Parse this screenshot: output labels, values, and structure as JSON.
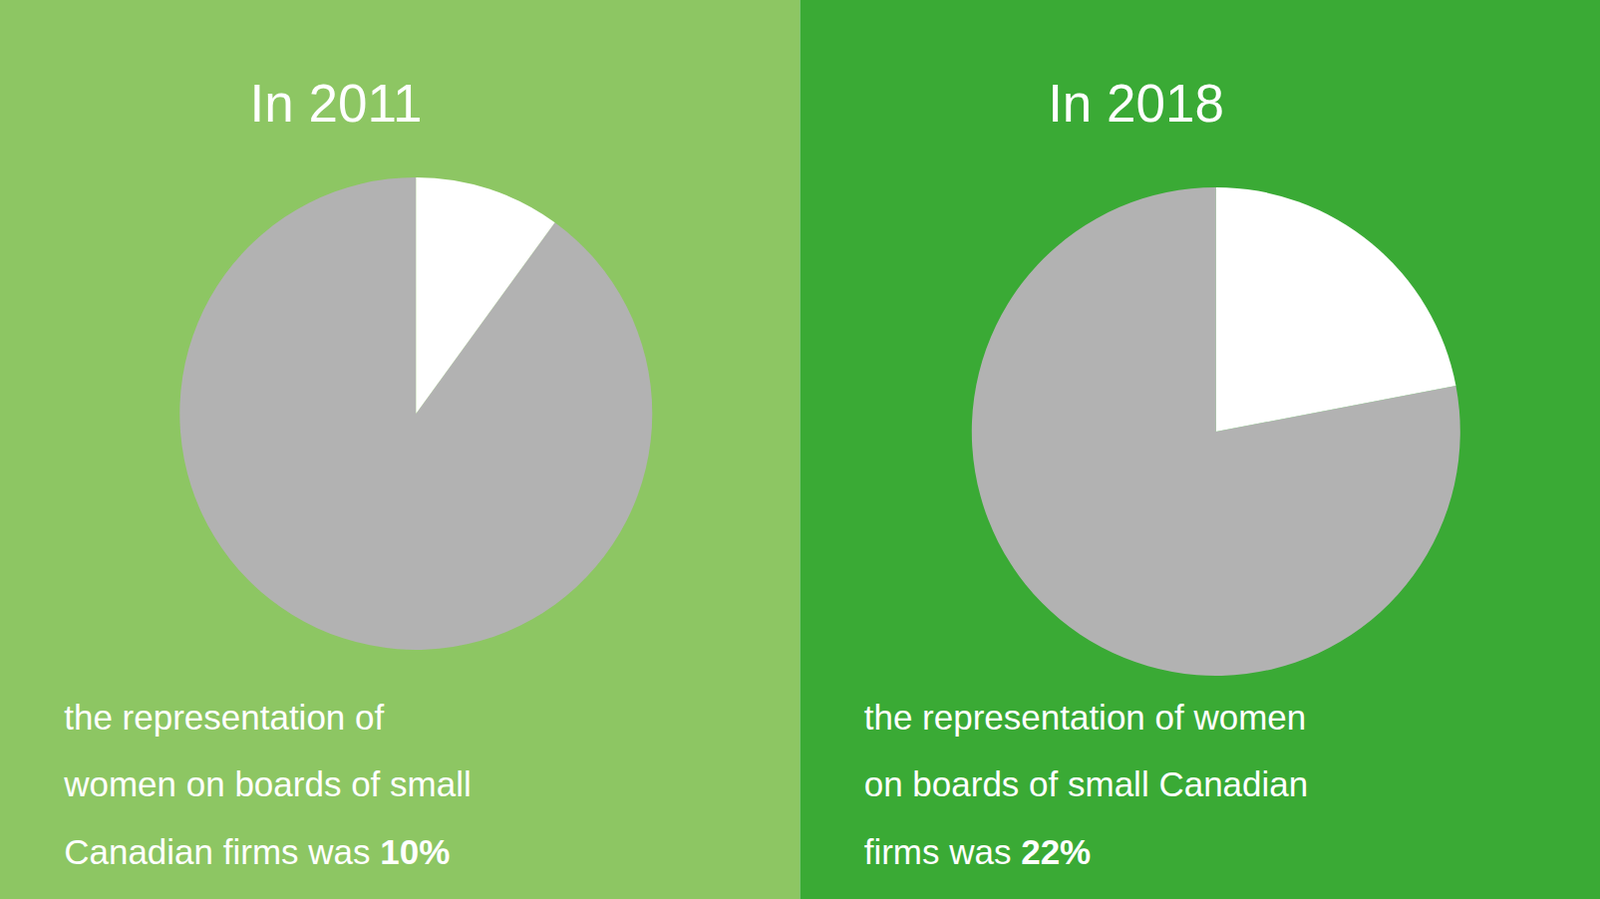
{
  "chart_data": [
    {
      "type": "pie",
      "title": "In 2011",
      "values": [
        90,
        10
      ],
      "colors": [
        "#b2b2b2",
        "#ffffff"
      ],
      "annotations": [
        "the representation of",
        "women on boards of small",
        "Canadian firms was ",
        "10%"
      ]
    },
    {
      "type": "pie",
      "title": "In 2018",
      "values": [
        78,
        22
      ],
      "colors": [
        "#b2b2b2",
        "#ffffff"
      ],
      "annotations": [
        "the representation of women",
        "on boards of small Canadian",
        "firms was ",
        "22%"
      ]
    }
  ]
}
